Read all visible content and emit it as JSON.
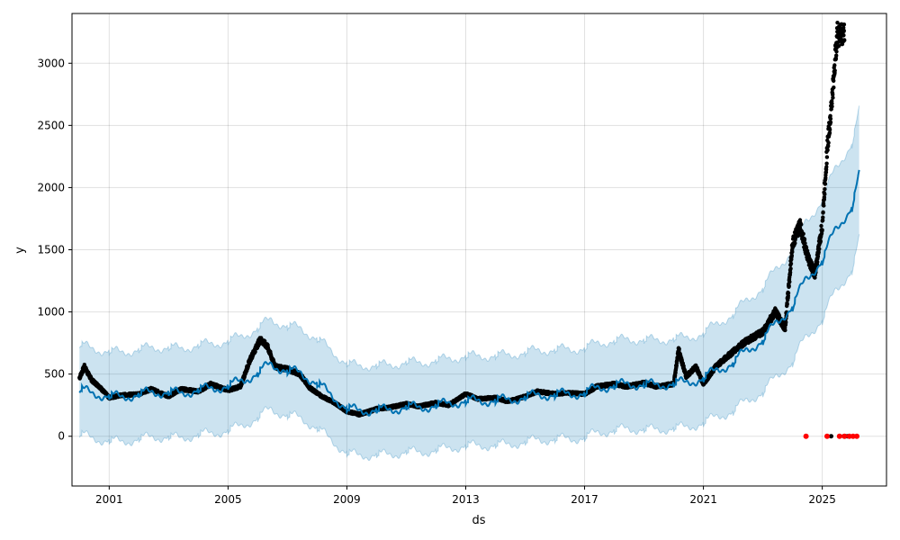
{
  "chart_data": {
    "type": "line",
    "title": "",
    "xlabel": "ds",
    "ylabel": "y",
    "x_ticks": [
      "2001",
      "2005",
      "2009",
      "2013",
      "2017",
      "2021",
      "2025"
    ],
    "y_ticks": [
      "0",
      "500",
      "1000",
      "1500",
      "2000",
      "2500",
      "3000"
    ],
    "xlim": [
      "1999-10-01",
      "2027-03-01"
    ],
    "ylim": [
      -400,
      3400
    ],
    "grid": true,
    "colors": {
      "forecast": "#0072B2",
      "uncertainty": "#0072B2",
      "observed": "#000000",
      "highlight": "#FF0000"
    },
    "series": [
      {
        "role": "forecast",
        "x": [
          "2000-01-01",
          "2000-06-01",
          "2001-01-01",
          "2001-06-01",
          "2002-01-01",
          "2002-06-01",
          "2003-01-01",
          "2003-06-01",
          "2004-01-01",
          "2004-06-01",
          "2005-01-01",
          "2005-06-01",
          "2006-01-01",
          "2006-06-01",
          "2007-01-01",
          "2007-06-01",
          "2008-01-01",
          "2008-06-01",
          "2009-01-01",
          "2009-06-01",
          "2010-01-01",
          "2010-06-01",
          "2011-01-01",
          "2011-06-01",
          "2012-01-01",
          "2012-06-01",
          "2013-01-01",
          "2013-06-01",
          "2014-01-01",
          "2014-06-01",
          "2015-01-01",
          "2015-06-01",
          "2016-01-01",
          "2016-06-01",
          "2017-01-01",
          "2017-06-01",
          "2018-01-01",
          "2018-06-01",
          "2019-01-01",
          "2019-06-01",
          "2020-01-01",
          "2020-06-01",
          "2021-01-01",
          "2021-06-01",
          "2022-01-01",
          "2022-06-01",
          "2023-01-01",
          "2023-06-01",
          "2024-01-01",
          "2024-06-01",
          "2025-01-01",
          "2025-06-01",
          "2026-01-01",
          "2026-04-01"
        ],
        "y": [
          395,
          330,
          340,
          300,
          355,
          340,
          370,
          330,
          390,
          370,
          420,
          430,
          520,
          570,
          540,
          500,
          440,
          330,
          240,
          190,
          230,
          195,
          255,
          215,
          265,
          250,
          300,
          270,
          305,
          280,
          330,
          320,
          350,
          330,
          360,
          380,
          420,
          410,
          430,
          400,
          440,
          420,
          480,
          520,
          600,
          680,
          780,
          900,
          1050,
          1250,
          1420,
          1650,
          1850,
          2100
        ]
      },
      {
        "role": "observed",
        "x": [
          "2000-01-01",
          "2000-03-01",
          "2000-06-01",
          "2000-09-01",
          "2001-01-01",
          "2001-06-01",
          "2002-01-01",
          "2002-06-01",
          "2003-01-01",
          "2003-06-01",
          "2004-01-01",
          "2004-06-01",
          "2005-01-01",
          "2005-06-01",
          "2005-10-01",
          "2006-02-01",
          "2006-05-01",
          "2006-08-01",
          "2007-01-01",
          "2007-06-01",
          "2007-10-01",
          "2008-03-01",
          "2008-08-01",
          "2009-01-01",
          "2009-06-01",
          "2010-01-01",
          "2010-06-01",
          "2011-01-01",
          "2011-06-01",
          "2012-01-01",
          "2012-06-01",
          "2013-01-01",
          "2013-06-01",
          "2014-01-01",
          "2014-06-01",
          "2015-01-01",
          "2015-06-01",
          "2016-01-01",
          "2016-06-01",
          "2017-01-01",
          "2017-06-01",
          "2018-01-01",
          "2018-06-01",
          "2019-01-01",
          "2019-06-01",
          "2020-01-01",
          "2020-03-01",
          "2020-06-01",
          "2020-10-01",
          "2021-01-01",
          "2021-06-01",
          "2022-01-01",
          "2022-06-01",
          "2023-01-01",
          "2023-06-01",
          "2023-10-01",
          "2024-01-01",
          "2024-04-01",
          "2024-07-01",
          "2024-10-01",
          "2025-01-01",
          "2025-03-01",
          "2025-05-01",
          "2025-07-01",
          "2025-08-15",
          "2025-10-01"
        ],
        "y": [
          470,
          560,
          450,
          400,
          310,
          330,
          340,
          380,
          320,
          380,
          360,
          420,
          370,
          400,
          620,
          780,
          720,
          560,
          540,
          500,
          390,
          320,
          270,
          200,
          175,
          220,
          230,
          260,
          240,
          270,
          250,
          340,
          300,
          310,
          280,
          320,
          360,
          340,
          350,
          340,
          400,
          420,
          400,
          430,
          400,
          420,
          700,
          480,
          560,
          420,
          560,
          680,
          760,
          840,
          1000,
          870,
          1550,
          1700,
          1450,
          1300,
          1700,
          2300,
          2700,
          3230,
          3230,
          3230
        ]
      },
      {
        "role": "highlight",
        "x": [
          "2024-06-15",
          "2025-03-01",
          "2025-08-01",
          "2025-10-01",
          "2025-12-01",
          "2026-01-15",
          "2026-03-01"
        ],
        "y": [
          0,
          0,
          0,
          0,
          0,
          0,
          0
        ]
      }
    ]
  }
}
